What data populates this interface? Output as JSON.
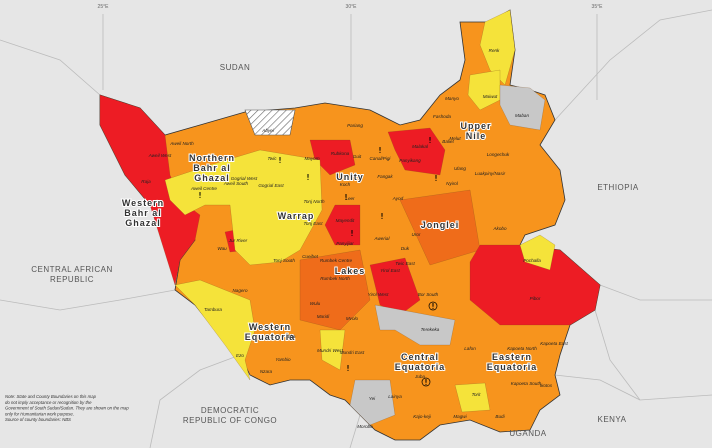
{
  "graticule": [
    "25°E",
    "30°E",
    "35°E"
  ],
  "countries": [
    [
      "SUDAN"
    ],
    [
      "ETHIOPIA"
    ],
    [
      "CENTRAL AFRICAN",
      "REPUBLIC"
    ],
    [
      "DEMOCRATIC",
      "REPUBLIC OF CONGO"
    ],
    [
      "UGANDA"
    ],
    [
      "KENYA"
    ]
  ],
  "states": [
    [
      "Western",
      "Bahr al",
      "Ghazal"
    ],
    [
      "Northern",
      "Bahr al",
      "Ghazal"
    ],
    [
      "Warrap"
    ],
    [
      "Unity"
    ],
    [
      "Upper",
      "Nile"
    ],
    [
      "Jonglei"
    ],
    [
      "Lakes"
    ],
    [
      "Western",
      "Equatoria"
    ],
    [
      "Central",
      "Equatoria"
    ],
    [
      "Eastern",
      "Equatoria"
    ]
  ],
  "counties": [
    "Abyei",
    "Renk",
    "Maiwut",
    "Maban",
    "Manyo",
    "Fashoda",
    "Baliet",
    "Longechuk",
    "Luakpiny/Nasir",
    "Ulang",
    "Nyirol",
    "Akobo",
    "Pochalla",
    "Pibor",
    "Ayod",
    "Uror",
    "Duk",
    "Twic East",
    "Bor South",
    "Pariang",
    "Rubkona",
    "Guit",
    "Koch",
    "Mayom",
    "Twic",
    "Aweil North",
    "Aweil West",
    "Aweil Centre",
    "Aweil South",
    "Gogrial East",
    "Gogrial West",
    "Tonj North",
    "Tonj East",
    "Tonj South",
    "Raja",
    "Wau",
    "Jur River",
    "Yirol East",
    "Yirol West",
    "Awerial",
    "Rumbek Centre",
    "Rumbek North",
    "Cueibet",
    "Wulu",
    "Mvolo",
    "Nagero",
    "Tambura",
    "Ezo",
    "Yambio",
    "Nzara",
    "Ibba",
    "Maridi",
    "Mundri West",
    "Mundri East",
    "Terekeka",
    "Juba",
    "Lainya",
    "Yei",
    "Morobo",
    "Kajo-keji",
    "Magwi",
    "Torit",
    "Ikotos",
    "Budi",
    "Kapoeta North",
    "Kapoeta South",
    "Kapoeta East",
    "Lafon",
    "Panyijiar",
    "Mayendit",
    "Leer",
    "Fangak",
    "Panyikang",
    "Malakal",
    "Melut",
    "Canal/Pigi"
  ],
  "note": [
    "Note: State and County Boundaries on this map",
    "do not imply acceptance or recognition by the",
    "Government of South Sudan/Sudan. They are shown on the map",
    "only for Humanitarian work purpose.",
    "Source of county boundaries: NBS"
  ]
}
